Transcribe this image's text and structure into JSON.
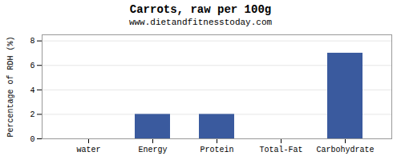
{
  "chart_data": {
    "type": "bar",
    "title": "Carrots, raw per 100g",
    "subtitle": "www.dietandfitnesstoday.com",
    "categories": [
      "water",
      "Energy",
      "Protein",
      "Total-Fat",
      "Carbohydrate"
    ],
    "values": [
      0,
      2,
      2,
      0,
      7
    ],
    "color": "#3a5a9e",
    "ylabel": "Percentage of RDH (%)",
    "ylim": [
      0,
      8.5
    ],
    "yticks": [
      0,
      2,
      4,
      6,
      8
    ],
    "grid": true
  }
}
